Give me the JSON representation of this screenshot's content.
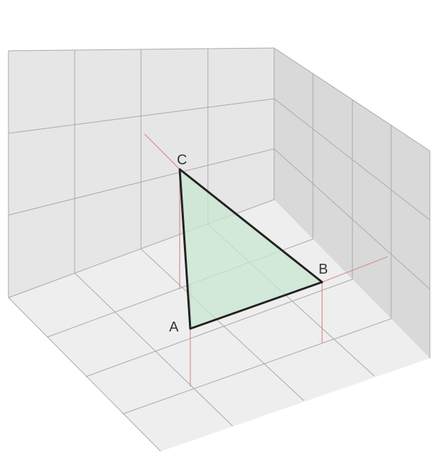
{
  "diagram": {
    "points": {
      "A": {
        "label": "A"
      },
      "B": {
        "label": "B"
      },
      "C": {
        "label": "C"
      }
    },
    "colors": {
      "back_wall": "#e6e6e6",
      "right_wall": "#d9d9d9",
      "floor": "#eeeeee",
      "grid": "#a9a9a9",
      "projection": "#d98c8c",
      "triangle_fill": "#c8e6d2",
      "triangle_stroke": "#222222"
    }
  }
}
